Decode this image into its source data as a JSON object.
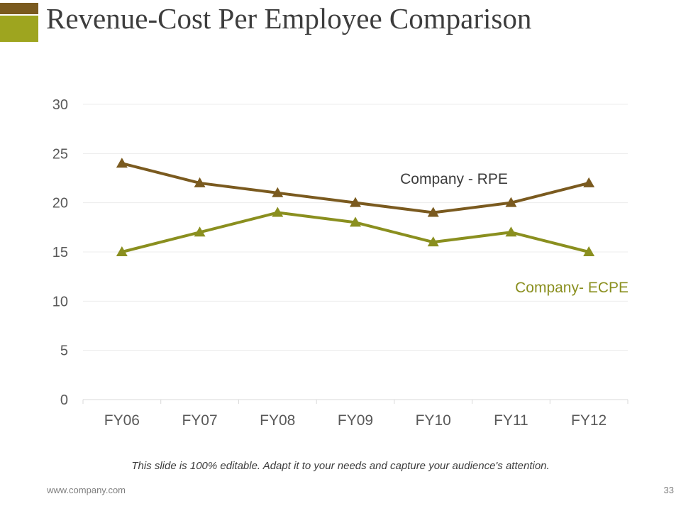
{
  "slide": {
    "title": "Revenue-Cost Per Employee Comparison",
    "caption": "This slide is 100% editable. Adapt it to your needs and capture your audience's attention.",
    "footer_url": "www.company.com",
    "page_number": "33"
  },
  "colors": {
    "accent_dark": "#7a5a1f",
    "accent_light": "#9ea51f",
    "rpe": "#7a5a1f",
    "ecpe": "#8a8f1f"
  },
  "chart_data": {
    "type": "line",
    "title": "",
    "xlabel": "",
    "ylabel": "",
    "categories": [
      "FY06",
      "FY07",
      "FY08",
      "FY09",
      "FY10",
      "FY11",
      "FY12"
    ],
    "ylim": [
      0,
      30
    ],
    "yticks": [
      0,
      5,
      10,
      15,
      20,
      25,
      30
    ],
    "grid": true,
    "marker": "triangle",
    "series": [
      {
        "name": "Company - RPE",
        "values": [
          24,
          22,
          21,
          20,
          19,
          20,
          22
        ]
      },
      {
        "name": "Company- ECPE",
        "values": [
          15,
          17,
          19,
          18,
          16,
          17,
          15
        ]
      }
    ]
  }
}
